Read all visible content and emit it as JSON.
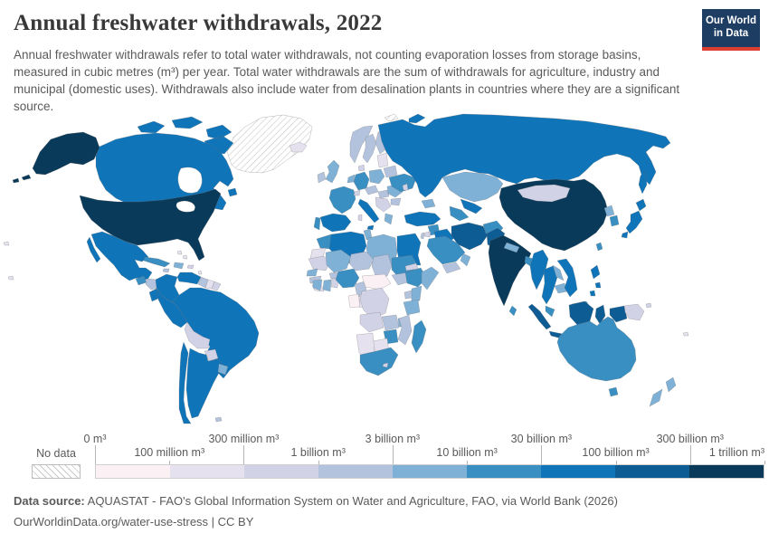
{
  "header": {
    "title": "Annual freshwater withdrawals, 2022",
    "logo": {
      "line1": "Our World",
      "line2": "in Data"
    }
  },
  "subtitle": "Annual freshwater withdrawals refer to total water withdrawals, not counting evaporation losses from storage basins, measured in cubic metres (m³) per year. Total water withdrawals are the sum of withdrawals for agriculture, industry and municipal (domestic uses). Withdrawals also include water from desalination plants in countries where they are a significant source.",
  "legend": {
    "no_data_label": "No data",
    "ticks": [
      {
        "label": "0 m³",
        "pos": 0,
        "row": "top"
      },
      {
        "label": "100 million m³",
        "pos": 1,
        "row": "bottom"
      },
      {
        "label": "300 million m³",
        "pos": 2,
        "row": "top"
      },
      {
        "label": "1 billion m³",
        "pos": 3,
        "row": "bottom"
      },
      {
        "label": "3 billion m³",
        "pos": 4,
        "row": "top"
      },
      {
        "label": "10 billion m³",
        "pos": 5,
        "row": "bottom"
      },
      {
        "label": "30 billion m³",
        "pos": 6,
        "row": "top"
      },
      {
        "label": "100 billion m³",
        "pos": 7,
        "row": "bottom"
      },
      {
        "label": "300 billion m³",
        "pos": 8,
        "row": "top"
      },
      {
        "label": "1 trillion m³",
        "pos": 9,
        "row": "bottom",
        "align": "right"
      }
    ]
  },
  "footer": {
    "source_label": "Data source:",
    "source_text": " AQUASTAT - FAO's Global Information System on Water and Agriculture, FAO, via World Bank (2026)",
    "link_line": "OurWorldinData.org/water-use-stress | CC BY"
  },
  "colors": {
    "logo_bg": "#1d3d63",
    "logo_red": "#dc3e32",
    "title": "#383838",
    "text_gray": "#5a5a5a",
    "border_gray": "#9a9a9a"
  },
  "chart_data": {
    "type": "choropleth",
    "title": "Annual freshwater withdrawals, 2022",
    "unit": "m³ per year",
    "legend_position": "bottom",
    "no_data": {
      "label": "No data",
      "style": "diagonal-hatch"
    },
    "bins": [
      {
        "range": "0–100 million m³",
        "color": "#fbf0f4"
      },
      {
        "range": "100–300 million m³",
        "color": "#e6e1ee"
      },
      {
        "range": "300 million–1 billion m³",
        "color": "#d2d2e7"
      },
      {
        "range": "1–3 billion m³",
        "color": "#b3c3dd"
      },
      {
        "range": "3–10 billion m³",
        "color": "#7fb1d7"
      },
      {
        "range": "10–30 billion m³",
        "color": "#3a8fc2"
      },
      {
        "range": "30–100 billion m³",
        "color": "#1074b8"
      },
      {
        "range": "100–300 billion m³",
        "color": "#0e5c94"
      },
      {
        "range": "300 billion–1 trillion m³",
        "color": "#0a3a5a"
      }
    ],
    "region_bins": {
      "greenland": 0,
      "svalbard": 0,
      "canada": 7,
      "usa": 9,
      "mexico": 7,
      "guatemala": 6,
      "honduras-nicaragua": 4,
      "costa-rica-panama": 5,
      "cuba": 6,
      "hispaniola": 5,
      "jamaica": 4,
      "puerto-rico": 3,
      "bahamas": 2,
      "lesser-antilles": 2,
      "colombia": 7,
      "venezuela": 7,
      "guyana": 4,
      "suriname": 2,
      "french-guiana": 3,
      "ecuador": 7,
      "peru": 7,
      "brazil": 7,
      "bolivia": 3,
      "paraguay": 3,
      "chile": 7,
      "argentina": 7,
      "uruguay": 5,
      "falkland-islands": 4,
      "iceland": 2,
      "norway": 4,
      "sweden": 4,
      "finland": 4,
      "denmark": 3,
      "uk": 5,
      "ireland": 4,
      "france": 6,
      "spain": 7,
      "portugal": 6,
      "germany": 6,
      "benelux": 5,
      "poland": 5,
      "czech-austria": 4,
      "hungary": 4,
      "switzerland": 3,
      "italy": 7,
      "sicily": 7,
      "sardinia": 3,
      "balkans": 3,
      "greece": 5,
      "romania": 5,
      "bulgaria": 4,
      "baltics": 2,
      "belarus": 4,
      "ukraine": 6,
      "moldova": 3,
      "russia": 7,
      "novaya-zemlya": 7,
      "sakhalin": 7,
      "kazakhstan": 5,
      "uzbekistan": 7,
      "turkmenistan": 6,
      "caucasus": 5,
      "turkey": 7,
      "syria": 6,
      "iraq": 7,
      "iran": 8,
      "afghanistan": 6,
      "pakistan": 8,
      "saudi-arabia": 6,
      "yemen": 4,
      "oman": 5,
      "jordan": 3,
      "israel": 4,
      "china": 9,
      "mongolia": 3,
      "north-korea": 5,
      "south-korea": 6,
      "japan": 7,
      "taiwan": 6,
      "india": 9,
      "nepal": 5,
      "bangladesh": 6,
      "sri-lanka": 6,
      "myanmar": 7,
      "thailand": 7,
      "laos": 5,
      "cambodia": 5,
      "vietnam": 7,
      "malaysia": 6,
      "philippines": 7,
      "indonesia": 8,
      "papua-new-guinea": 3,
      "timor": 4,
      "morocco": 6,
      "western-sahara": 2,
      "algeria": 7,
      "tunisia": 5,
      "libya": 5,
      "egypt": 7,
      "mauritania": 3,
      "mali": 5,
      "burkina-faso": 4,
      "niger": 4,
      "chad": 4,
      "sudan": 6,
      "south-sudan": 4,
      "eritrea": 3,
      "ethiopia": 6,
      "somalia": 5,
      "senegal": 5,
      "guinea": 4,
      "sierra-leone": 2,
      "ivory-coast": 5,
      "ghana": 5,
      "togo-benin": 3,
      "nigeria": 6,
      "cameroon": 4,
      "central-african-republic": 1,
      "gabon": 1,
      "congo": 2,
      "dr-congo": 3,
      "uganda": 4,
      "kenya": 5,
      "tanzania": 5,
      "angola": 3,
      "zambia": 4,
      "malawi": 5,
      "mozambique": 4,
      "zimbabwe": 6,
      "botswana": 2,
      "namibia": 2,
      "south-africa": 6,
      "lesotho": 3,
      "madagascar": 6,
      "australia": 6,
      "tasmania": 6,
      "new-zealand": 5,
      "pacific-islands": 2
    }
  }
}
